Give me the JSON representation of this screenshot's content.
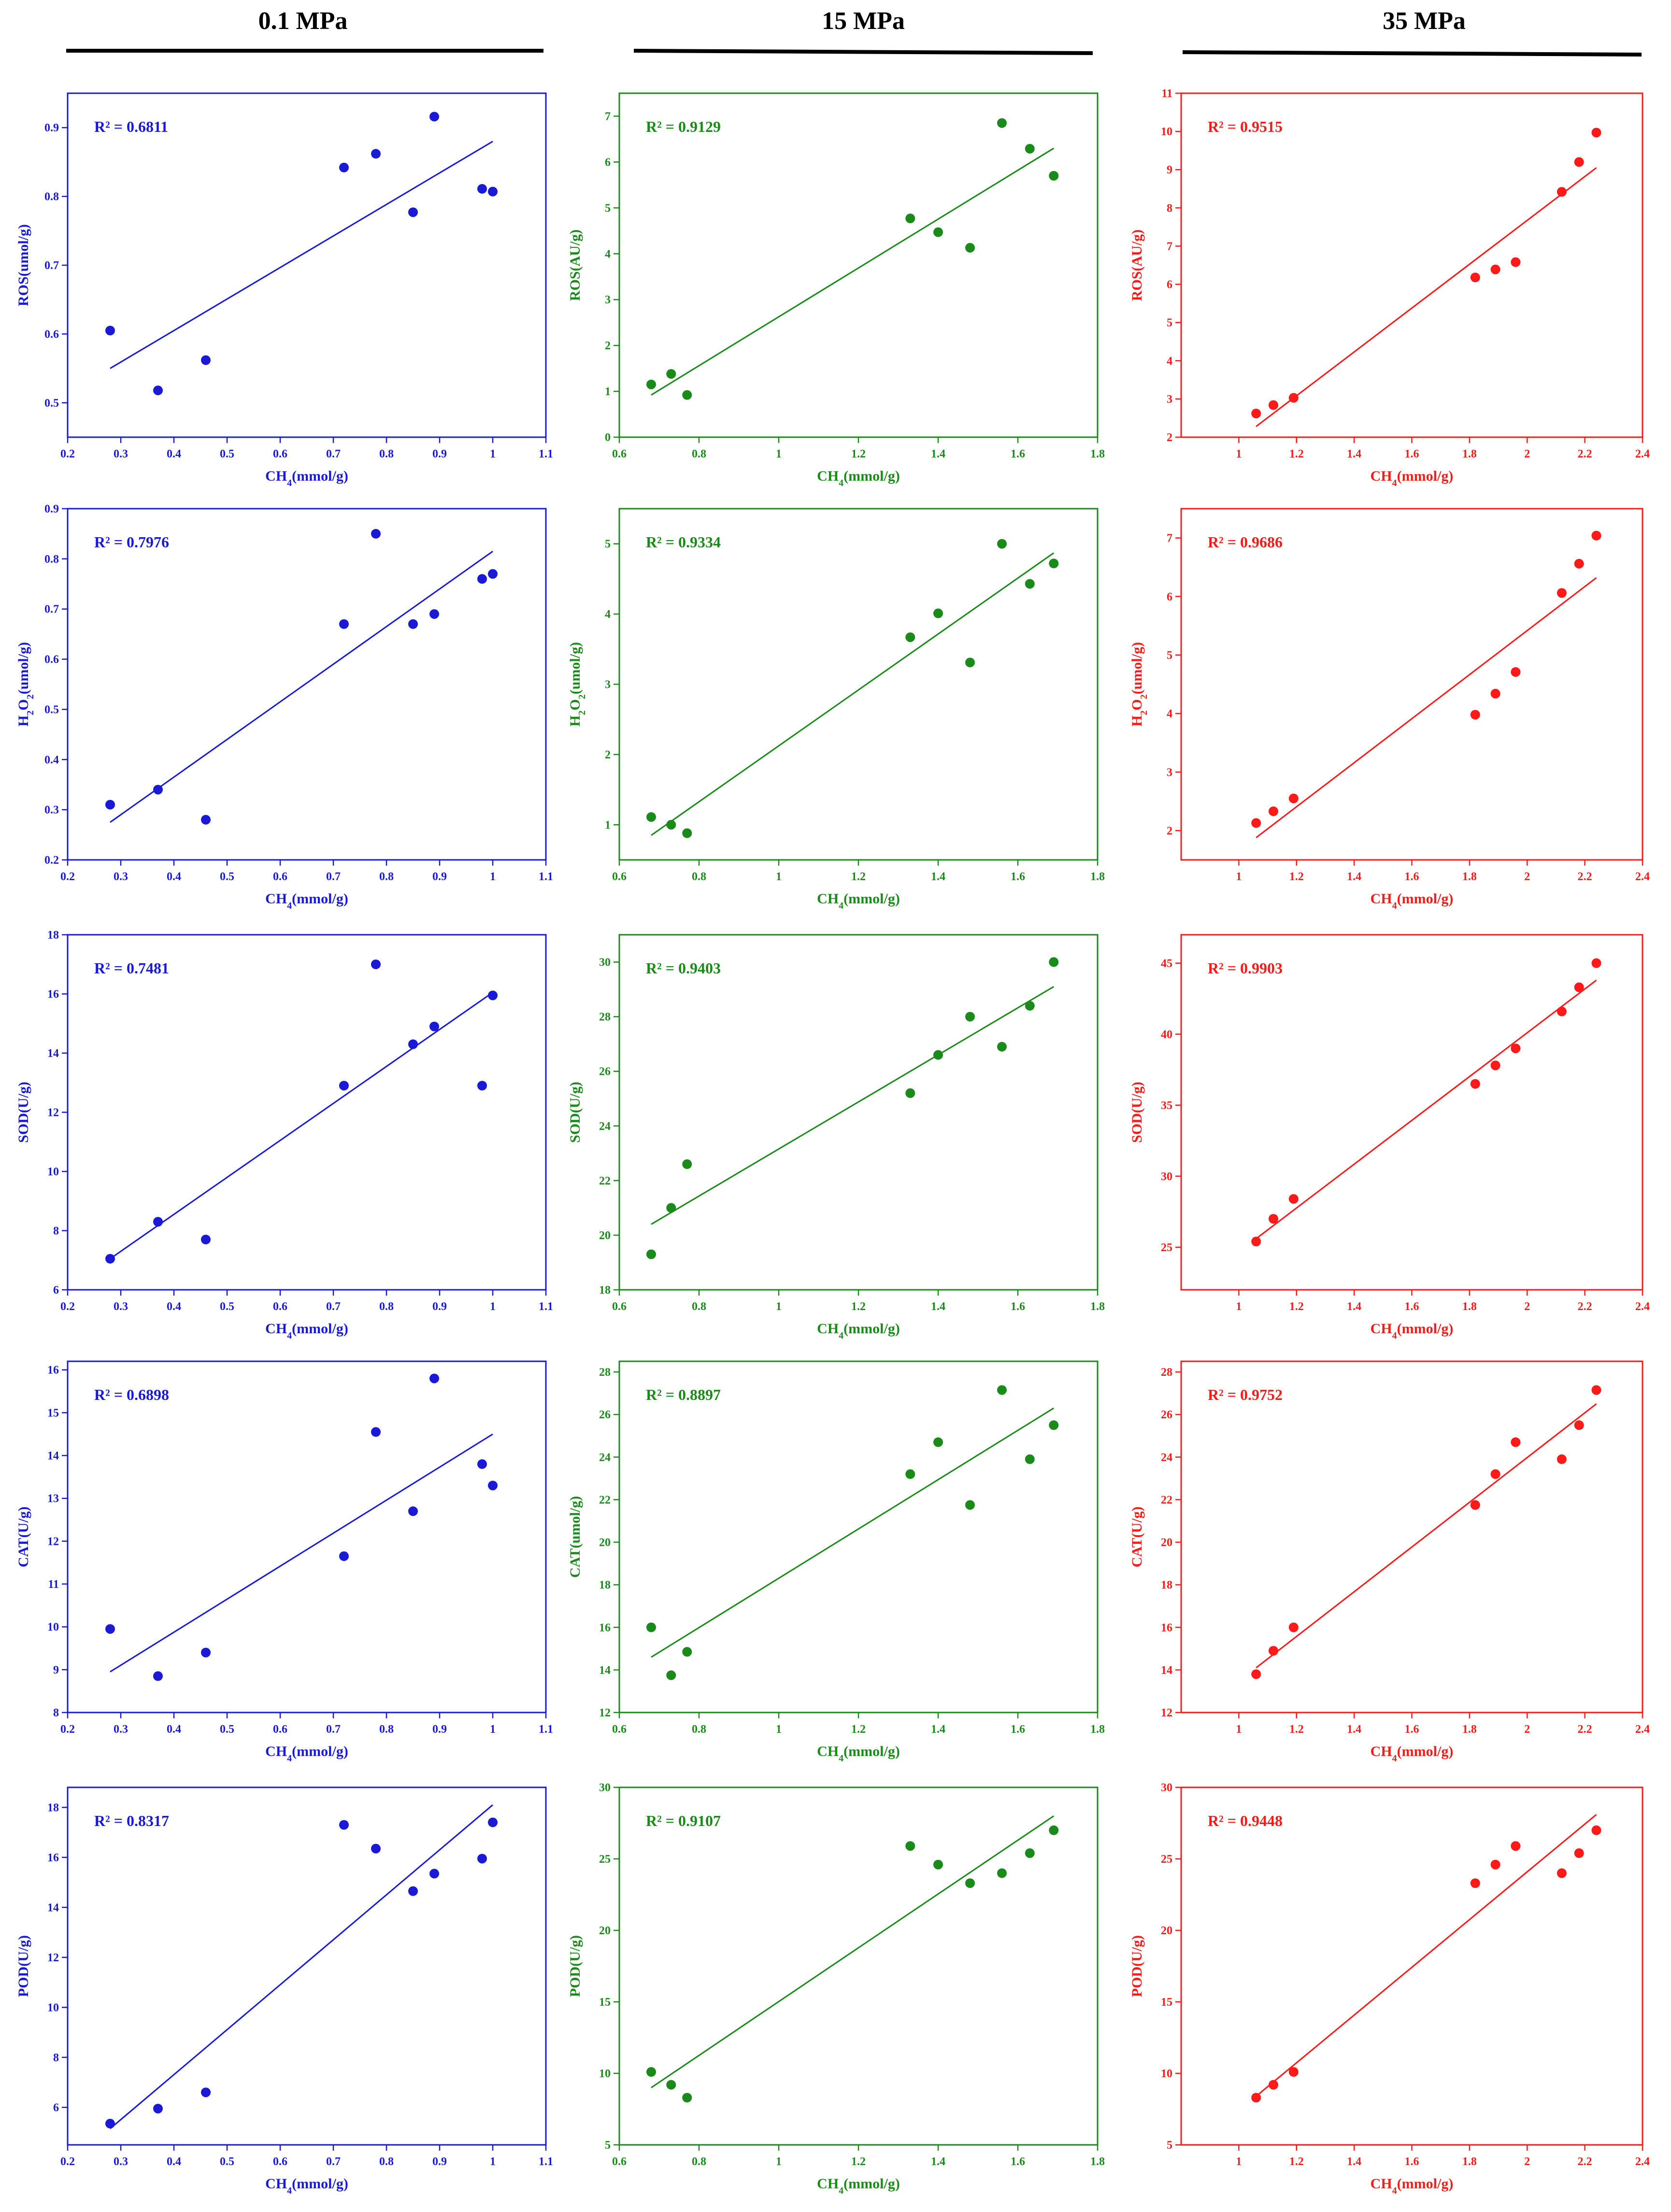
{
  "columns": [
    {
      "header": "0.1 MPa",
      "color": "#1a1ad6"
    },
    {
      "header": "15 MPa",
      "color": "#1a8a1a"
    },
    {
      "header": "35 MPa",
      "color": "#ff1a1a"
    }
  ],
  "chart_data": [
    {
      "type": "scatter",
      "panel": "row1-col1",
      "r2_label": "R² = 0.6811",
      "xlabel": "CH4(mmol/g)",
      "ylabel": "ROS(umol/g)",
      "xlim": [
        0.2,
        1.1
      ],
      "ylim": [
        0.45,
        0.95
      ],
      "xticks": [
        0.2,
        0.3,
        0.4,
        0.5,
        0.6,
        0.7,
        0.8,
        0.9,
        1.0,
        1.1
      ],
      "yticks": [
        0.5,
        0.6,
        0.7,
        0.8,
        0.9
      ],
      "x": [
        0.28,
        0.37,
        0.46,
        0.72,
        0.78,
        0.85,
        0.89,
        0.98,
        1.0
      ],
      "y": [
        0.605,
        0.518,
        0.562,
        0.842,
        0.862,
        0.777,
        0.916,
        0.811,
        0.807
      ],
      "fit_x": [
        0.28,
        1.0
      ],
      "fit_y": [
        0.55,
        0.88
      ]
    },
    {
      "type": "scatter",
      "panel": "row1-col2",
      "r2_label": "R² = 0.9129",
      "xlabel": "CH4(mmol/g)",
      "ylabel": "ROS(AU/g)",
      "xlim": [
        0.6,
        1.8
      ],
      "ylim": [
        0,
        7.5
      ],
      "xticks": [
        0.6,
        0.8,
        1.0,
        1.2,
        1.4,
        1.6,
        1.8
      ],
      "yticks": [
        0,
        1,
        2,
        3,
        4,
        5,
        6,
        7
      ],
      "x": [
        0.68,
        0.73,
        0.77,
        1.33,
        1.4,
        1.48,
        1.56,
        1.63,
        1.69
      ],
      "y": [
        1.15,
        1.38,
        0.92,
        4.77,
        4.47,
        4.13,
        6.85,
        6.29,
        5.7
      ],
      "fit_x": [
        0.68,
        1.69
      ],
      "fit_y": [
        0.92,
        6.3
      ]
    },
    {
      "type": "scatter",
      "panel": "row1-col3",
      "r2_label": "R² = 0.9515",
      "xlabel": "CH4(mmol/g)",
      "ylabel": "ROS(AU/g)",
      "xlim": [
        0.8,
        2.4
      ],
      "ylim": [
        2,
        11
      ],
      "xticks": [
        1.0,
        1.2,
        1.4,
        1.6,
        1.8,
        2.0,
        2.2,
        2.4
      ],
      "yticks": [
        2,
        3,
        4,
        5,
        6,
        7,
        8,
        9,
        10,
        11
      ],
      "x": [
        1.06,
        1.12,
        1.19,
        1.82,
        1.89,
        1.96,
        2.12,
        2.18,
        2.24
      ],
      "y": [
        2.62,
        2.84,
        3.03,
        6.18,
        6.39,
        6.58,
        8.42,
        9.2,
        9.97
      ],
      "fit_x": [
        1.06,
        2.24
      ],
      "fit_y": [
        2.28,
        9.05
      ]
    },
    {
      "type": "scatter",
      "panel": "row2-col1",
      "r2_label": "R² = 0.7976",
      "xlabel": "CH4(mmol/g)",
      "ylabel": "H2O2(umol/g)",
      "xlim": [
        0.2,
        1.1
      ],
      "ylim": [
        0.2,
        0.9
      ],
      "xticks": [
        0.2,
        0.3,
        0.4,
        0.5,
        0.6,
        0.7,
        0.8,
        0.9,
        1.0,
        1.1
      ],
      "yticks": [
        0.2,
        0.3,
        0.4,
        0.5,
        0.6,
        0.7,
        0.8,
        0.9
      ],
      "x": [
        0.28,
        0.37,
        0.46,
        0.72,
        0.78,
        0.85,
        0.89,
        0.98,
        1.0
      ],
      "y": [
        0.31,
        0.34,
        0.28,
        0.67,
        0.85,
        0.67,
        0.69,
        0.76,
        0.77
      ],
      "fit_x": [
        0.28,
        1.0
      ],
      "fit_y": [
        0.275,
        0.815
      ]
    },
    {
      "type": "scatter",
      "panel": "row2-col2",
      "r2_label": "R² = 0.9334",
      "xlabel": "CH4(mmol/g)",
      "ylabel": "H2O2(umol/g)",
      "xlim": [
        0.6,
        1.8
      ],
      "ylim": [
        0.5,
        5.5
      ],
      "xticks": [
        0.6,
        0.8,
        1.0,
        1.2,
        1.4,
        1.6,
        1.8
      ],
      "yticks": [
        1,
        2,
        3,
        4,
        5
      ],
      "x": [
        0.68,
        0.73,
        0.77,
        1.33,
        1.4,
        1.48,
        1.56,
        1.63,
        1.69
      ],
      "y": [
        1.11,
        1.0,
        0.88,
        3.67,
        4.01,
        3.31,
        5.0,
        4.43,
        4.72
      ],
      "fit_x": [
        0.68,
        1.69
      ],
      "fit_y": [
        0.85,
        4.87
      ]
    },
    {
      "type": "scatter",
      "panel": "row2-col3",
      "r2_label": "R² = 0.9686",
      "xlabel": "CH4(mmol/g)",
      "ylabel": "H2O2(umol/g)",
      "xlim": [
        0.8,
        2.4
      ],
      "ylim": [
        1.5,
        7.5
      ],
      "xticks": [
        1.0,
        1.2,
        1.4,
        1.6,
        1.8,
        2.0,
        2.2,
        2.4
      ],
      "yticks": [
        2,
        3,
        4,
        5,
        6,
        7
      ],
      "x": [
        1.06,
        1.12,
        1.19,
        1.82,
        1.89,
        1.96,
        2.12,
        2.18,
        2.24
      ],
      "y": [
        2.13,
        2.33,
        2.55,
        3.98,
        4.34,
        4.71,
        6.06,
        6.56,
        7.04
      ],
      "fit_x": [
        1.06,
        2.24
      ],
      "fit_y": [
        1.88,
        6.32
      ]
    },
    {
      "type": "scatter",
      "panel": "row3-col1",
      "r2_label": "R² = 0.7481",
      "xlabel": "CH4(mmol/g)",
      "ylabel": "SOD(U/g)",
      "xlim": [
        0.2,
        1.1
      ],
      "ylim": [
        6,
        18
      ],
      "xticks": [
        0.2,
        0.3,
        0.4,
        0.5,
        0.6,
        0.7,
        0.8,
        0.9,
        1.0,
        1.1
      ],
      "yticks": [
        6,
        8,
        10,
        12,
        14,
        16,
        18
      ],
      "x": [
        0.28,
        0.37,
        0.46,
        0.72,
        0.78,
        0.85,
        0.89,
        0.98,
        1.0
      ],
      "y": [
        7.05,
        8.3,
        7.7,
        12.9,
        17.0,
        14.3,
        14.9,
        12.9,
        15.95
      ],
      "fit_x": [
        0.28,
        1.0
      ],
      "fit_y": [
        7.05,
        16.05
      ]
    },
    {
      "type": "scatter",
      "panel": "row3-col2",
      "r2_label": "R² = 0.9403",
      "xlabel": "CH4(mmol/g)",
      "ylabel": "SOD(U/g)",
      "xlim": [
        0.6,
        1.8
      ],
      "ylim": [
        18,
        31
      ],
      "xticks": [
        0.6,
        0.8,
        1.0,
        1.2,
        1.4,
        1.6,
        1.8
      ],
      "yticks": [
        18,
        20,
        22,
        24,
        26,
        28,
        30
      ],
      "x": [
        0.68,
        0.73,
        0.77,
        1.33,
        1.4,
        1.48,
        1.56,
        1.63,
        1.69
      ],
      "y": [
        19.3,
        21.0,
        22.6,
        25.2,
        26.6,
        28.0,
        26.9,
        28.4,
        30.0
      ],
      "fit_x": [
        0.68,
        1.69
      ],
      "fit_y": [
        20.4,
        29.1
      ]
    },
    {
      "type": "scatter",
      "panel": "row3-col3",
      "r2_label": "R² = 0.9903",
      "xlabel": "CH4(mmol/g)",
      "ylabel": "SOD(U/g)",
      "xlim": [
        0.8,
        2.4
      ],
      "ylim": [
        22,
        47
      ],
      "xticks": [
        1.0,
        1.2,
        1.4,
        1.6,
        1.8,
        2.0,
        2.2,
        2.4
      ],
      "yticks": [
        25,
        30,
        35,
        40,
        45
      ],
      "x": [
        1.06,
        1.12,
        1.19,
        1.82,
        1.89,
        1.96,
        2.12,
        2.18,
        2.24
      ],
      "y": [
        25.4,
        27.0,
        28.4,
        36.5,
        37.8,
        39.0,
        41.6,
        43.3,
        45.0
      ],
      "fit_x": [
        1.06,
        2.24
      ],
      "fit_y": [
        25.6,
        43.8
      ]
    },
    {
      "type": "scatter",
      "panel": "row4-col1",
      "r2_label": "R² = 0.6898",
      "xlabel": "CH4(mmol/g)",
      "ylabel": "CAT(U/g)",
      "xlim": [
        0.2,
        1.1
      ],
      "ylim": [
        8,
        16.2
      ],
      "xticks": [
        0.2,
        0.3,
        0.4,
        0.5,
        0.6,
        0.7,
        0.8,
        0.9,
        1.0,
        1.1
      ],
      "yticks": [
        8,
        9,
        10,
        11,
        12,
        13,
        14,
        15,
        16
      ],
      "x": [
        0.28,
        0.37,
        0.46,
        0.72,
        0.78,
        0.85,
        0.89,
        0.98,
        1.0
      ],
      "y": [
        9.95,
        8.85,
        9.4,
        11.65,
        14.55,
        12.7,
        15.8,
        13.8,
        13.3
      ],
      "fit_x": [
        0.28,
        1.0
      ],
      "fit_y": [
        8.95,
        14.5
      ]
    },
    {
      "type": "scatter",
      "panel": "row4-col2",
      "r2_label": "R² = 0.8897",
      "xlabel": "CH4(mmol/g)",
      "ylabel": "CAT(umol/g)",
      "xlim": [
        0.6,
        1.8
      ],
      "ylim": [
        12,
        28.5
      ],
      "xticks": [
        0.6,
        0.8,
        1.0,
        1.2,
        1.4,
        1.6,
        1.8
      ],
      "yticks": [
        12,
        14,
        16,
        18,
        20,
        22,
        24,
        26,
        28
      ],
      "x": [
        0.68,
        0.73,
        0.77,
        1.33,
        1.4,
        1.48,
        1.56,
        1.63,
        1.69
      ],
      "y": [
        16.0,
        13.75,
        14.85,
        23.2,
        24.7,
        21.75,
        27.15,
        23.9,
        25.5
      ],
      "fit_x": [
        0.68,
        1.69
      ],
      "fit_y": [
        14.6,
        26.3
      ]
    },
    {
      "type": "scatter",
      "panel": "row4-col3",
      "r2_label": "R² = 0.9752",
      "xlabel": "CH4(mmol/g)",
      "ylabel": "CAT(U/g)",
      "xlim": [
        0.8,
        2.4
      ],
      "ylim": [
        12,
        28.5
      ],
      "xticks": [
        1.0,
        1.2,
        1.4,
        1.6,
        1.8,
        2.0,
        2.2,
        2.4
      ],
      "yticks": [
        12,
        14,
        16,
        18,
        20,
        22,
        24,
        26,
        28
      ],
      "x": [
        1.06,
        1.12,
        1.19,
        1.82,
        1.89,
        1.96,
        2.12,
        2.18,
        2.24
      ],
      "y": [
        13.8,
        14.9,
        16.0,
        21.75,
        23.2,
        24.7,
        23.9,
        25.5,
        27.15
      ],
      "fit_x": [
        1.06,
        2.24
      ],
      "fit_y": [
        14.1,
        26.5
      ]
    },
    {
      "type": "scatter",
      "panel": "row5-col1",
      "r2_label": "R² = 0.8317",
      "xlabel": "CH4(mmol/g)",
      "ylabel": "POD(U/g)",
      "xlim": [
        0.2,
        1.1
      ],
      "ylim": [
        4.5,
        18.8
      ],
      "xticks": [
        0.2,
        0.3,
        0.4,
        0.5,
        0.6,
        0.7,
        0.8,
        0.9,
        1.0,
        1.1
      ],
      "yticks": [
        6,
        8,
        10,
        12,
        14,
        16,
        18
      ],
      "x": [
        0.28,
        0.37,
        0.46,
        0.72,
        0.78,
        0.85,
        0.89,
        0.98,
        1.0
      ],
      "y": [
        5.35,
        5.95,
        6.6,
        17.3,
        16.35,
        14.65,
        15.35,
        15.95,
        17.4
      ],
      "fit_x": [
        0.28,
        1.0
      ],
      "fit_y": [
        5.15,
        18.1
      ]
    },
    {
      "type": "scatter",
      "panel": "row5-col2",
      "r2_label": "R² = 0.9107",
      "xlabel": "CH4(mmol/g)",
      "ylabel": "POD(U/g)",
      "xlim": [
        0.6,
        1.8
      ],
      "ylim": [
        5,
        30
      ],
      "xticks": [
        0.6,
        0.8,
        1.0,
        1.2,
        1.4,
        1.6,
        1.8
      ],
      "yticks": [
        5,
        10,
        15,
        20,
        25,
        30
      ],
      "x": [
        0.68,
        0.73,
        0.77,
        1.33,
        1.4,
        1.48,
        1.56,
        1.63,
        1.69
      ],
      "y": [
        10.1,
        9.2,
        8.3,
        25.9,
        24.6,
        23.3,
        24.0,
        25.4,
        27.0
      ],
      "fit_x": [
        0.68,
        1.69
      ],
      "fit_y": [
        9.0,
        28.0
      ]
    },
    {
      "type": "scatter",
      "panel": "row5-col3",
      "r2_label": "R² = 0.9448",
      "xlabel": "CH4(mmol/g)",
      "ylabel": "POD(U/g)",
      "xlim": [
        0.8,
        2.4
      ],
      "ylim": [
        5,
        30
      ],
      "xticks": [
        1.0,
        1.2,
        1.4,
        1.6,
        1.8,
        2.0,
        2.2,
        2.4
      ],
      "yticks": [
        5,
        10,
        15,
        20,
        25,
        30
      ],
      "x": [
        1.06,
        1.12,
        1.19,
        1.82,
        1.89,
        1.96,
        2.12,
        2.18,
        2.24
      ],
      "y": [
        8.3,
        9.2,
        10.1,
        23.3,
        24.6,
        25.9,
        24.0,
        25.4,
        27.0
      ],
      "fit_x": [
        1.06,
        2.24
      ],
      "fit_y": [
        8.4,
        28.1
      ]
    }
  ]
}
